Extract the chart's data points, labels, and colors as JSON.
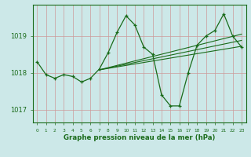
{
  "title": "Graphe pression niveau de la mer (hPa)",
  "background_color": "#cce8e8",
  "plot_bg_color": "#cce8e8",
  "line_color": "#1a6b1a",
  "grid_color": "#cc9999",
  "text_color": "#1a6b1a",
  "xlim": [
    -0.5,
    23.5
  ],
  "ylim": [
    1016.65,
    1019.85
  ],
  "yticks": [
    1017,
    1018,
    1019
  ],
  "xticks": [
    0,
    1,
    2,
    3,
    4,
    5,
    6,
    7,
    8,
    9,
    10,
    11,
    12,
    13,
    14,
    15,
    16,
    17,
    18,
    19,
    20,
    21,
    22,
    23
  ],
  "series1": {
    "x": [
      0,
      1,
      2,
      3,
      4,
      5,
      6,
      7,
      8,
      9,
      10,
      11,
      12,
      13,
      14,
      15,
      16,
      17,
      18,
      19,
      20,
      21,
      22,
      23
    ],
    "y": [
      1018.3,
      1017.95,
      1017.85,
      1017.95,
      1017.9,
      1017.75,
      1017.85,
      1018.1,
      1018.55,
      1019.1,
      1019.55,
      1019.3,
      1018.7,
      1018.5,
      1017.4,
      1017.1,
      1017.1,
      1018.0,
      1018.75,
      1019.0,
      1019.15,
      1019.6,
      1019.0,
      1018.7
    ]
  },
  "series2": {
    "x": [
      7,
      23
    ],
    "y": [
      1018.08,
      1018.72
    ]
  },
  "series3": {
    "x": [
      7,
      23
    ],
    "y": [
      1018.08,
      1018.88
    ]
  },
  "series4": {
    "x": [
      7,
      23
    ],
    "y": [
      1018.08,
      1019.05
    ]
  }
}
